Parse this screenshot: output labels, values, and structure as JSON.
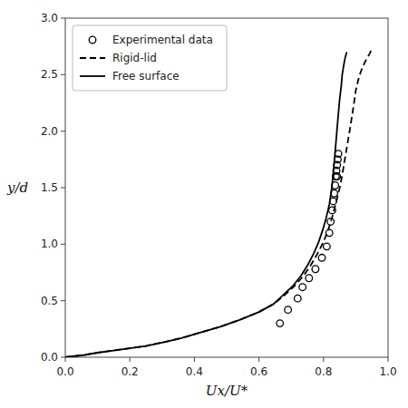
{
  "chart_data": {
    "type": "line",
    "xlabel": "Ux/U*",
    "ylabel": "y/d",
    "xlim": [
      0,
      1.0
    ],
    "ylim": [
      0,
      3.0
    ],
    "xticks": [
      {
        "value": 0,
        "label": "0.0"
      },
      0.2,
      0.4,
      0.6,
      0.8,
      {
        "value": 1.0,
        "label": "1.0"
      }
    ],
    "yticks": [
      {
        "value": 0,
        "label": "0.0"
      },
      0.5,
      {
        "value": 1.0,
        "label": "1.0"
      },
      1.5,
      {
        "value": 2.0,
        "label": "2.0"
      },
      2.5,
      {
        "value": 3.0,
        "label": "3.0"
      }
    ],
    "grid": false,
    "legend": "upper left",
    "series": [
      {
        "name": "Experimental data",
        "type": "scatter",
        "marker": "circle",
        "color": "#000000",
        "x": [
          0.665,
          0.69,
          0.72,
          0.735,
          0.755,
          0.775,
          0.795,
          0.81,
          0.818,
          0.822,
          0.827,
          0.83,
          0.833,
          0.836,
          0.838,
          0.84,
          0.842,
          0.844,
          0.846,
          0.842
        ],
        "values": [
          0.3,
          0.42,
          0.52,
          0.62,
          0.7,
          0.78,
          0.88,
          0.98,
          1.1,
          1.2,
          1.3,
          1.38,
          1.45,
          1.52,
          1.6,
          1.65,
          1.7,
          1.75,
          1.8,
          1.6
        ]
      },
      {
        "name": "Rigid-lid",
        "type": "line",
        "line_style": "dashed",
        "color": "#000000",
        "x": [
          0.0,
          0.01,
          0.03,
          0.06,
          0.1,
          0.15,
          0.2,
          0.25,
          0.3,
          0.36,
          0.42,
          0.48,
          0.54,
          0.6,
          0.645,
          0.68,
          0.71,
          0.738,
          0.762,
          0.782,
          0.8,
          0.815,
          0.828,
          0.84,
          0.852,
          0.862,
          0.872,
          0.882,
          0.892,
          0.9,
          0.91,
          0.92,
          0.93,
          0.938,
          0.944,
          0.948
        ],
        "values": [
          0.0,
          0.005,
          0.01,
          0.02,
          0.04,
          0.06,
          0.08,
          0.1,
          0.13,
          0.17,
          0.22,
          0.27,
          0.33,
          0.4,
          0.47,
          0.55,
          0.63,
          0.72,
          0.82,
          0.92,
          1.02,
          1.13,
          1.25,
          1.38,
          1.52,
          1.68,
          1.85,
          2.02,
          2.2,
          2.36,
          2.48,
          2.56,
          2.62,
          2.66,
          2.69,
          2.72
        ]
      },
      {
        "name": "Free surface",
        "type": "line",
        "line_style": "solid",
        "color": "#000000",
        "x": [
          0.0,
          0.01,
          0.03,
          0.06,
          0.1,
          0.15,
          0.2,
          0.25,
          0.3,
          0.36,
          0.42,
          0.48,
          0.54,
          0.6,
          0.645,
          0.675,
          0.705,
          0.73,
          0.752,
          0.77,
          0.785,
          0.798,
          0.808,
          0.818,
          0.825,
          0.83,
          0.835,
          0.84,
          0.845,
          0.85,
          0.855,
          0.858,
          0.862,
          0.865,
          0.868,
          0.872
        ],
        "values": [
          0.0,
          0.005,
          0.01,
          0.02,
          0.04,
          0.06,
          0.08,
          0.1,
          0.13,
          0.17,
          0.22,
          0.27,
          0.33,
          0.4,
          0.47,
          0.55,
          0.63,
          0.72,
          0.82,
          0.92,
          1.02,
          1.13,
          1.23,
          1.35,
          1.48,
          1.62,
          1.78,
          1.95,
          2.12,
          2.28,
          2.4,
          2.5,
          2.57,
          2.62,
          2.66,
          2.7
        ]
      }
    ]
  }
}
